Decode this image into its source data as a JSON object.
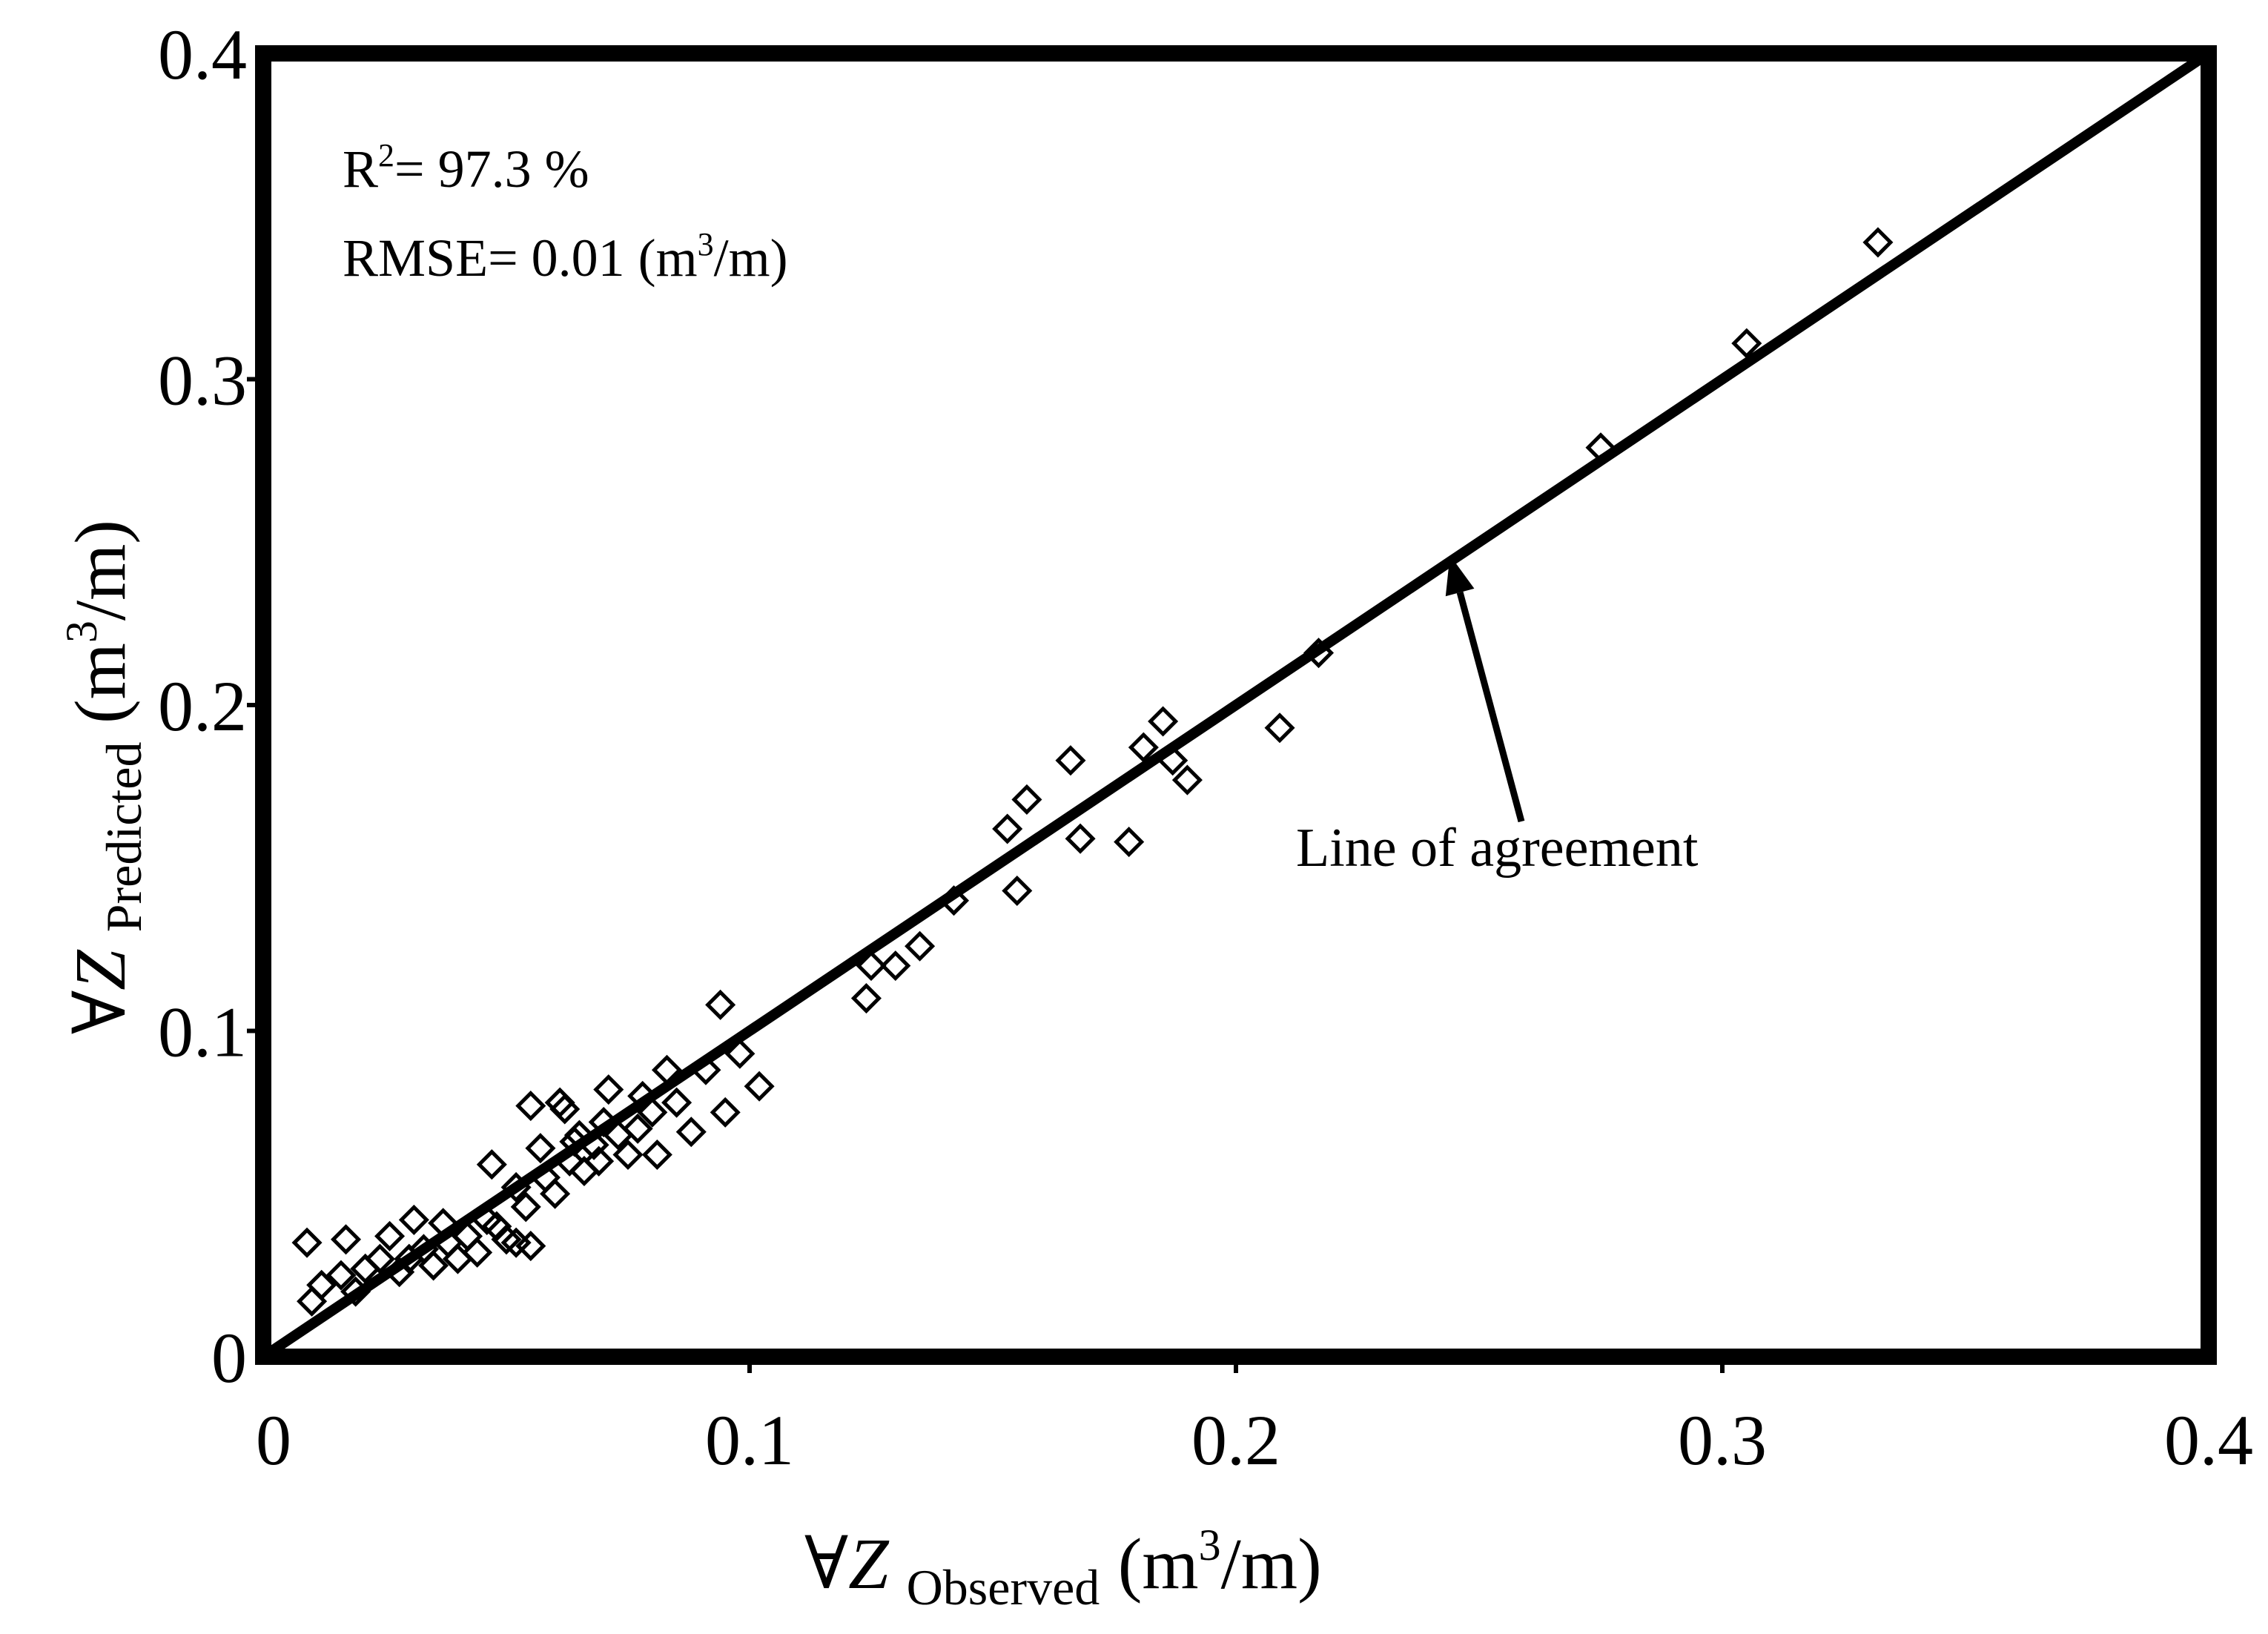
{
  "chart_data": {
    "type": "scatter",
    "x_axis": {
      "symbol": "∀",
      "var": "Z",
      "sub": "Observed",
      "unit_open": " (m",
      "unit_sup": "3",
      "unit_close": "/m)",
      "range": [
        0,
        0.4
      ],
      "ticks": [
        0,
        0.1,
        0.2,
        0.3,
        0.4
      ],
      "tick_labels": [
        "0",
        "0.1",
        "0.2",
        "0.3",
        "0.4"
      ]
    },
    "y_axis": {
      "symbol": "∀",
      "var": "Z",
      "sub": "Predicted",
      "unit_open": " (m",
      "unit_sup": "3",
      "unit_close": "/m)",
      "range": [
        0,
        0.4
      ],
      "ticks": [
        0,
        0.1,
        0.2,
        0.3,
        0.4
      ],
      "tick_labels": [
        "0",
        "0.1",
        "0.2",
        "0.3",
        "0.4"
      ]
    },
    "stats": {
      "r2_prefix": "R",
      "r2_sup": "2",
      "r2_value": "= 97.3 %",
      "rmse_prefix": "RMSE= 0.01 (m",
      "rmse_sup": "3",
      "rmse_suffix": "/m)"
    },
    "reference_line": {
      "label": "Line of agreement",
      "from": [
        0,
        0
      ],
      "to": [
        0.4,
        0.4
      ],
      "arrow_tip": [
        0.244,
        0.246
      ]
    },
    "marker": "open-diamond",
    "grid": false,
    "points": [
      [
        0.009,
        0.035
      ],
      [
        0.017,
        0.036
      ],
      [
        0.026,
        0.037
      ],
      [
        0.031,
        0.042
      ],
      [
        0.037,
        0.041
      ],
      [
        0.01,
        0.017
      ],
      [
        0.012,
        0.022
      ],
      [
        0.016,
        0.025
      ],
      [
        0.019,
        0.02
      ],
      [
        0.021,
        0.027
      ],
      [
        0.024,
        0.03
      ],
      [
        0.028,
        0.026
      ],
      [
        0.03,
        0.03
      ],
      [
        0.033,
        0.033
      ],
      [
        0.035,
        0.028
      ],
      [
        0.038,
        0.035
      ],
      [
        0.04,
        0.03
      ],
      [
        0.042,
        0.037
      ],
      [
        0.044,
        0.032
      ],
      [
        0.046,
        0.042
      ],
      [
        0.048,
        0.04
      ],
      [
        0.05,
        0.036
      ],
      [
        0.052,
        0.035
      ],
      [
        0.054,
        0.046
      ],
      [
        0.055,
        0.034
      ],
      [
        0.047,
        0.059
      ],
      [
        0.052,
        0.052
      ],
      [
        0.055,
        0.077
      ],
      [
        0.057,
        0.064
      ],
      [
        0.058,
        0.055
      ],
      [
        0.06,
        0.05
      ],
      [
        0.061,
        0.078
      ],
      [
        0.062,
        0.076
      ],
      [
        0.063,
        0.06
      ],
      [
        0.065,
        0.068
      ],
      [
        0.066,
        0.057
      ],
      [
        0.068,
        0.065
      ],
      [
        0.07,
        0.072
      ],
      [
        0.071,
        0.082
      ],
      [
        0.073,
        0.068
      ],
      [
        0.075,
        0.062
      ],
      [
        0.077,
        0.07
      ],
      [
        0.078,
        0.08
      ],
      [
        0.08,
        0.075
      ],
      [
        0.081,
        0.062
      ],
      [
        0.083,
        0.088
      ],
      [
        0.085,
        0.078
      ],
      [
        0.088,
        0.069
      ],
      [
        0.091,
        0.088
      ],
      [
        0.094,
        0.108
      ],
      [
        0.095,
        0.075
      ],
      [
        0.098,
        0.093
      ],
      [
        0.102,
        0.083
      ],
      [
        0.069,
        0.06
      ],
      [
        0.064,
        0.066
      ],
      [
        0.124,
        0.11
      ],
      [
        0.125,
        0.12
      ],
      [
        0.13,
        0.12
      ],
      [
        0.135,
        0.126
      ],
      [
        0.142,
        0.14
      ],
      [
        0.153,
        0.162
      ],
      [
        0.155,
        0.143
      ],
      [
        0.157,
        0.171
      ],
      [
        0.166,
        0.183
      ],
      [
        0.168,
        0.159
      ],
      [
        0.178,
        0.158
      ],
      [
        0.181,
        0.187
      ],
      [
        0.185,
        0.195
      ],
      [
        0.187,
        0.183
      ],
      [
        0.19,
        0.177
      ],
      [
        0.209,
        0.193
      ],
      [
        0.217,
        0.216
      ],
      [
        0.275,
        0.279
      ],
      [
        0.305,
        0.311
      ],
      [
        0.332,
        0.342
      ]
    ]
  }
}
